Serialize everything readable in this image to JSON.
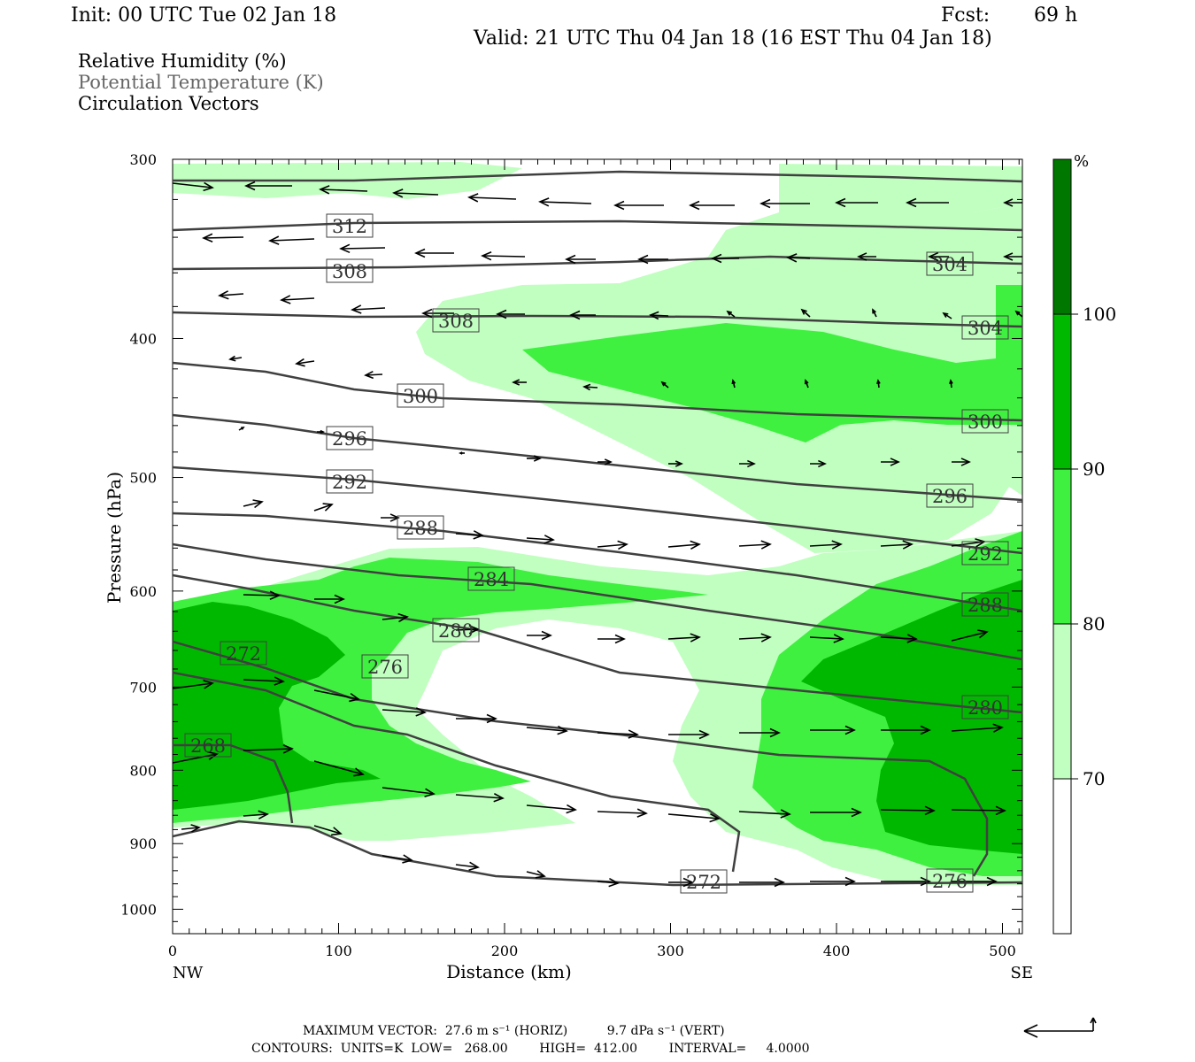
{
  "header": {
    "init": "Init: 00 UTC Tue 02 Jan 18",
    "fcst_label": "Fcst:",
    "fcst_value": "69 h",
    "valid": "Valid: 21 UTC Thu 04 Jan 18 (16 EST Thu 04 Jan 18)"
  },
  "legend": {
    "rh": "Relative Humidity (%)",
    "theta": "Potential Temperature (K)",
    "vectors": "Circulation Vectors"
  },
  "colors": {
    "rh_70_80": "#c0ffc0",
    "rh_80_90": "#40f040",
    "rh_90_100": "#00b800",
    "rh_100": "#007800",
    "contour": "#404040"
  },
  "chart_data": {
    "type": "cross-section",
    "xlabel": "Distance (km)",
    "ylabel": "Pressure (hPa)",
    "xlim": [
      0,
      512
    ],
    "ylim": [
      300,
      1040
    ],
    "y_scale": "log",
    "x_ticks": [
      "0",
      "100",
      "200",
      "300",
      "400",
      "500"
    ],
    "x_tick_values": [
      0,
      100,
      200,
      300,
      400,
      500
    ],
    "y_ticks": [
      "300",
      "400",
      "500",
      "600",
      "700",
      "800",
      "900",
      "1000"
    ],
    "y_tick_values": [
      300,
      400,
      500,
      600,
      700,
      800,
      900,
      1000
    ],
    "x_end_labels": {
      "left": "NW",
      "right": "SE"
    },
    "colorbar": {
      "unit": "%",
      "levels": [
        "70",
        "80",
        "90",
        "100"
      ],
      "level_values": [
        70,
        80,
        90,
        100
      ]
    },
    "contour_labels": [
      "312",
      "308",
      "308",
      "304",
      "304",
      "300",
      "300",
      "296",
      "296",
      "292",
      "292",
      "288",
      "288",
      "284",
      "280",
      "280",
      "276",
      "276",
      "272",
      "272",
      "268"
    ],
    "footer": {
      "max_vector": "MAXIMUM VECTOR:  27.6 m s⁻¹ (HORIZ)          9.7 dPa s⁻¹ (VERT)",
      "contours": "CONTOURS:  UNITS=K  LOW=   268.00        HIGH=  412.00        INTERVAL=     4.0000"
    }
  }
}
